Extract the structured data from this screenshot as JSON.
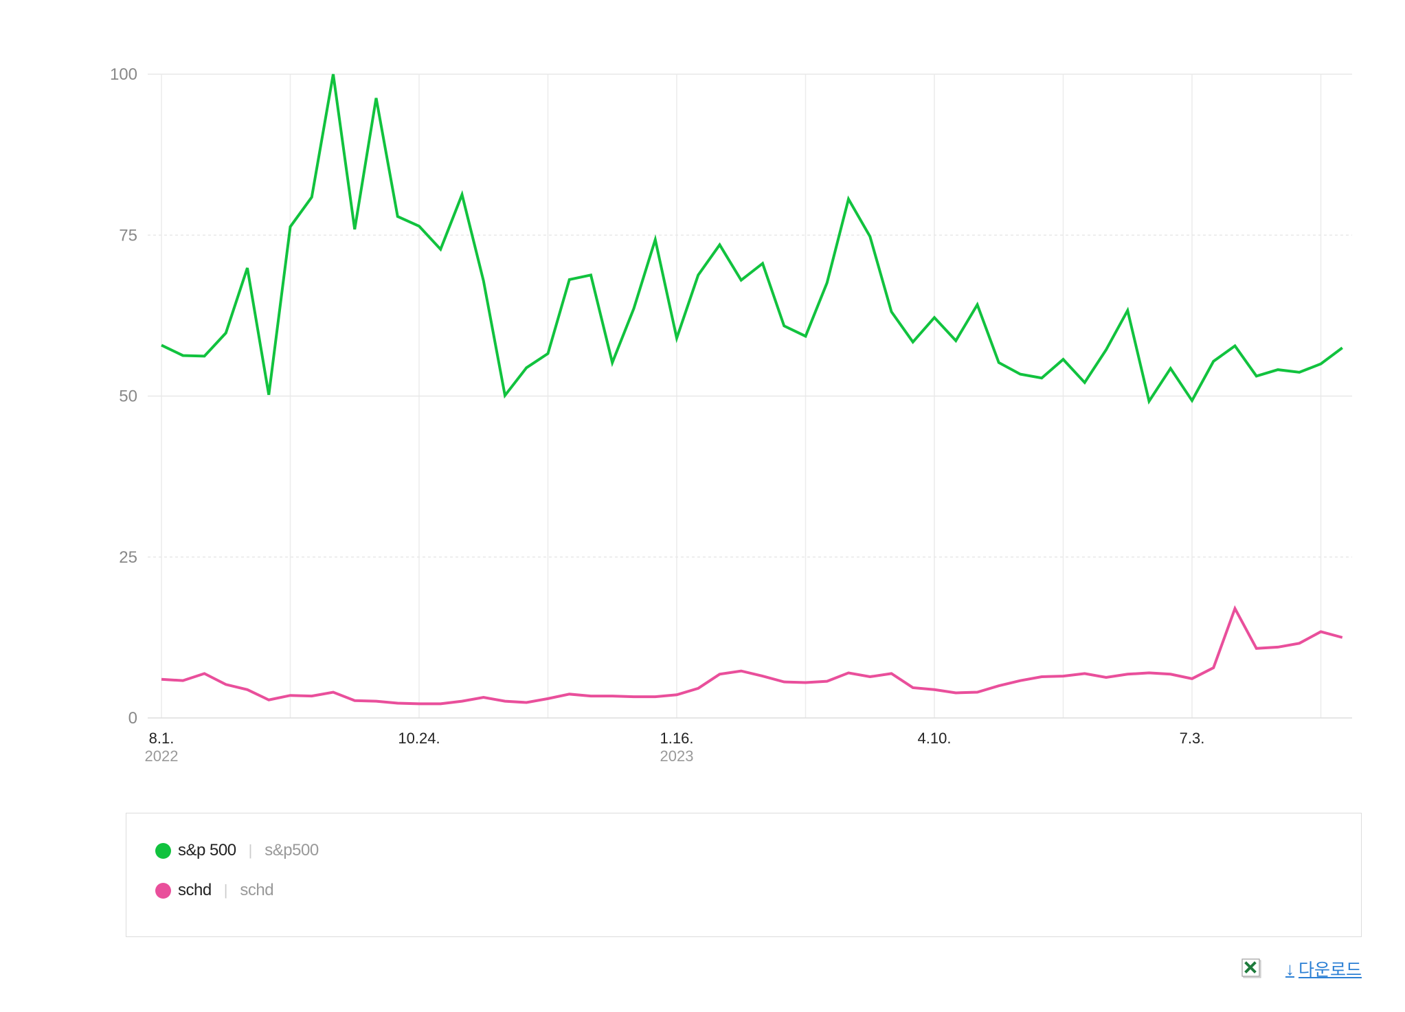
{
  "chart_data": {
    "type": "line",
    "y_ticks": [
      "100",
      "75",
      "50",
      "25",
      "0"
    ],
    "ylim": [
      0,
      100
    ],
    "x_tick_labels": [
      {
        "label": "8.1.",
        "year": "2022"
      },
      {
        "label": "10.24.",
        "year": ""
      },
      {
        "label": "1.16.",
        "year": "2023"
      },
      {
        "label": "4.10.",
        "year": ""
      },
      {
        "label": "7.3.",
        "year": ""
      }
    ],
    "x_tick_indices": [
      0,
      12,
      24,
      36,
      48
    ],
    "x_grid_indices": [
      0,
      6,
      12,
      18,
      24,
      30,
      36,
      42,
      48,
      54
    ],
    "grid": true,
    "series": [
      {
        "name": "s&p 500",
        "color": "#11c23e",
        "values": [
          57.9,
          56.3,
          56.2,
          59.8,
          69.9,
          50.2,
          76.3,
          80.9,
          100.0,
          75.9,
          96.3,
          77.9,
          76.4,
          72.8,
          81.3,
          67.9,
          50.1,
          54.4,
          56.6,
          68.1,
          68.8,
          55.2,
          63.6,
          74.3,
          59.0,
          68.8,
          73.5,
          68.0,
          70.6,
          60.9,
          59.3,
          67.6,
          80.6,
          74.8,
          63.1,
          58.4,
          62.2,
          58.6,
          64.2,
          55.2,
          53.4,
          52.8,
          55.7,
          52.1,
          57.2,
          63.3,
          49.2,
          54.3,
          49.3,
          55.4,
          57.8,
          53.1,
          54.1,
          53.7,
          55.0,
          57.5
        ]
      },
      {
        "name": "schd",
        "color": "#e94f9b",
        "values": [
          6.0,
          5.8,
          6.9,
          5.2,
          4.4,
          2.8,
          3.5,
          3.4,
          4.0,
          2.7,
          2.6,
          2.3,
          2.2,
          2.2,
          2.6,
          3.2,
          2.6,
          2.4,
          3.0,
          3.7,
          3.4,
          3.4,
          3.3,
          3.3,
          3.6,
          4.6,
          6.8,
          7.3,
          6.5,
          5.6,
          5.5,
          5.7,
          7.0,
          6.4,
          6.9,
          4.7,
          4.4,
          3.9,
          4.0,
          5.0,
          5.8,
          6.4,
          6.5,
          6.9,
          6.3,
          6.8,
          7.0,
          6.8,
          6.1,
          7.8,
          17.0,
          10.8,
          11.0,
          11.6,
          13.4,
          12.5
        ]
      }
    ]
  },
  "legend": {
    "items": [
      {
        "name": "s&p 500",
        "separator": "|",
        "keyword": "s&p500",
        "color": "#11c23e"
      },
      {
        "name": "schd",
        "separator": "|",
        "keyword": "schd",
        "color": "#e94f9b"
      }
    ]
  },
  "download": {
    "label": "다운로드",
    "arrow": "↓",
    "icon": "excel-icon"
  }
}
